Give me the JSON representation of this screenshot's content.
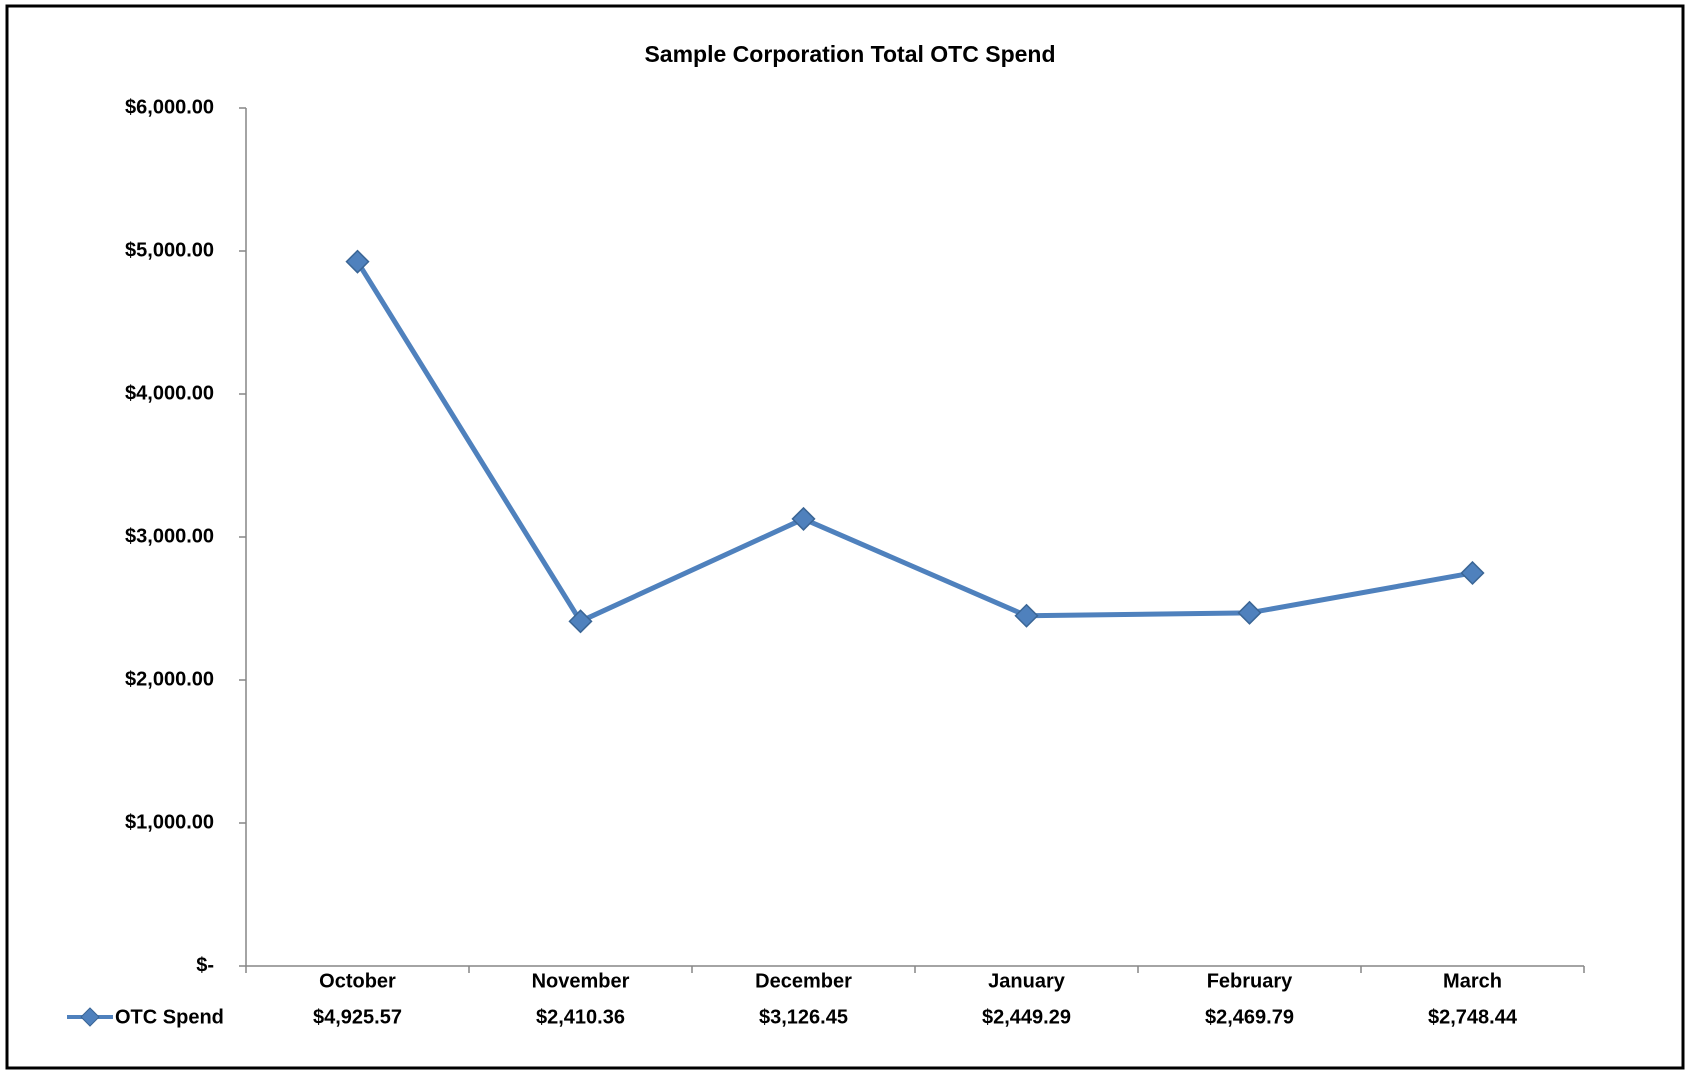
{
  "chart_data": {
    "type": "line",
    "title": "Sample Corporation Total OTC Spend",
    "categories": [
      "October",
      "November",
      "December",
      "January",
      "February",
      "March"
    ],
    "series": [
      {
        "name": "OTC Spend",
        "color": "#4f81bd",
        "values": [
          4925.57,
          2410.36,
          3126.45,
          2449.29,
          2469.79,
          2748.44
        ],
        "value_labels": [
          "$4,925.57",
          "$2,410.36",
          "$3,126.45",
          "$2,449.29",
          "$2,469.79",
          "$2,748.44"
        ]
      }
    ],
    "ylim": [
      0,
      6000
    ],
    "yticks": [
      {
        "value": 0,
        "label": "$-"
      },
      {
        "value": 1000,
        "label": "$1,000.00"
      },
      {
        "value": 2000,
        "label": "$2,000.00"
      },
      {
        "value": 3000,
        "label": "$3,000.00"
      },
      {
        "value": 4000,
        "label": "$4,000.00"
      },
      {
        "value": 5000,
        "label": "$5,000.00"
      },
      {
        "value": 6000,
        "label": "$6,000.00"
      }
    ],
    "grid": false
  }
}
